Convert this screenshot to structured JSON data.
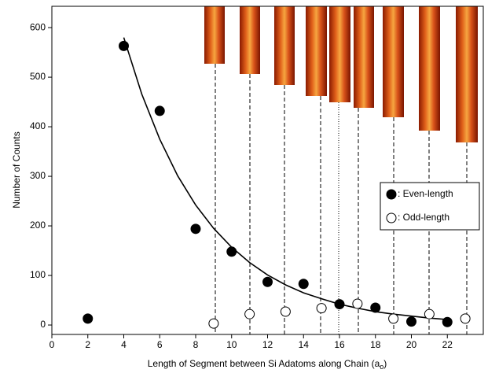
{
  "chart_data": {
    "type": "scatter",
    "x_label": {
      "main": "Length of Segment between Si Adatoms along Chain (a",
      "sub": "o",
      "end": ")"
    },
    "y_label": "Number of Counts",
    "xlim": [
      0,
      24
    ],
    "ylim": [
      -19,
      643
    ],
    "xticks": [
      0,
      2,
      4,
      6,
      8,
      10,
      12,
      14,
      16,
      18,
      20,
      22
    ],
    "yticks": [
      0,
      100,
      200,
      300,
      400,
      500,
      600
    ],
    "series": [
      {
        "name": ": Even-length",
        "color": "#000000",
        "filled": true,
        "x": [
          2,
          4,
          6,
          8,
          10,
          12,
          14,
          16,
          18,
          20,
          22
        ],
        "values": [
          13,
          563,
          432,
          194,
          148,
          87,
          83,
          42,
          35,
          7,
          6
        ]
      },
      {
        "name": ": Odd-length",
        "color": "#000000",
        "filled": false,
        "x": [
          9,
          11,
          13,
          15,
          17,
          19,
          21,
          23
        ],
        "values": [
          3,
          22,
          27,
          34,
          43,
          13,
          22,
          13
        ]
      }
    ],
    "fit": {
      "color": "#000000",
      "x": [
        4,
        5,
        6,
        7,
        8,
        9,
        10,
        11,
        12,
        13,
        14,
        15,
        16,
        17,
        18,
        19,
        20,
        21,
        22
      ],
      "values": [
        580,
        466,
        375,
        301,
        242,
        195,
        157,
        126,
        101,
        81,
        65,
        53,
        42,
        34,
        27,
        22,
        18,
        14,
        11
      ]
    }
  }
}
